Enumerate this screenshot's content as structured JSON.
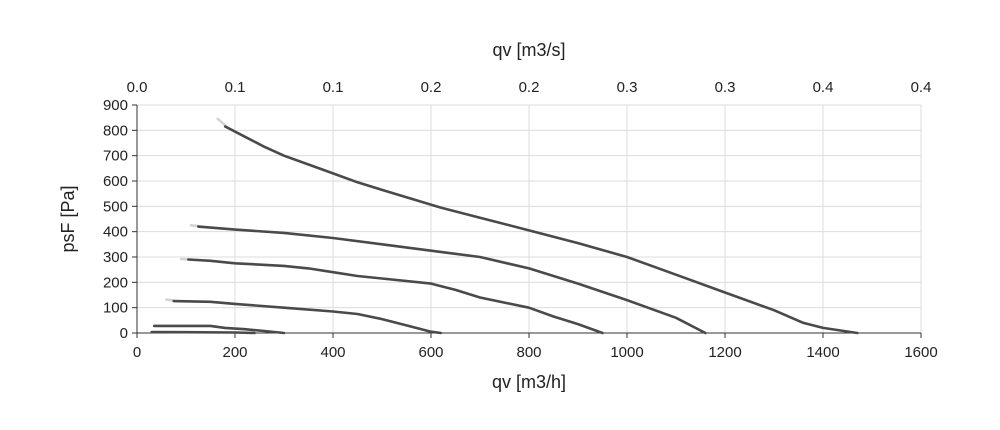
{
  "chart_data": {
    "type": "line",
    "xlabel": "qv [m3/h]",
    "x2label": "qv [m3/s]",
    "ylabel": "psF [Pa]",
    "xlim": [
      0,
      1600
    ],
    "ylim": [
      0,
      900
    ],
    "x_ticks": [
      "0",
      "200",
      "400",
      "600",
      "800",
      "1000",
      "1200",
      "1400",
      "1600"
    ],
    "x2_ticks": [
      "0.0",
      "0.1",
      "0.1",
      "0.2",
      "0.2",
      "0.3",
      "0.3",
      "0.4",
      "0.4"
    ],
    "y_ticks": [
      "0",
      "100",
      "200",
      "300",
      "400",
      "500",
      "600",
      "700",
      "800",
      "900"
    ],
    "grid": true,
    "series": [
      {
        "lead": [
          [
            165,
            845
          ],
          [
            180,
            820
          ]
        ],
        "points": [
          [
            180,
            815
          ],
          [
            220,
            775
          ],
          [
            260,
            735
          ],
          [
            300,
            700
          ],
          [
            350,
            665
          ],
          [
            400,
            630
          ],
          [
            450,
            595
          ],
          [
            500,
            565
          ],
          [
            560,
            530
          ],
          [
            620,
            495
          ],
          [
            700,
            455
          ],
          [
            800,
            405
          ],
          [
            900,
            355
          ],
          [
            1000,
            300
          ],
          [
            1100,
            230
          ],
          [
            1200,
            160
          ],
          [
            1300,
            90
          ],
          [
            1360,
            40
          ],
          [
            1400,
            20
          ],
          [
            1470,
            0
          ]
        ]
      },
      {
        "lead": [
          [
            110,
            425
          ],
          [
            125,
            422
          ]
        ],
        "points": [
          [
            125,
            420
          ],
          [
            200,
            408
          ],
          [
            300,
            395
          ],
          [
            400,
            375
          ],
          [
            500,
            350
          ],
          [
            600,
            325
          ],
          [
            700,
            300
          ],
          [
            800,
            255
          ],
          [
            900,
            195
          ],
          [
            1000,
            130
          ],
          [
            1100,
            60
          ],
          [
            1160,
            0
          ]
        ]
      },
      {
        "lead": [
          [
            90,
            292
          ],
          [
            105,
            290
          ]
        ],
        "points": [
          [
            105,
            290
          ],
          [
            150,
            285
          ],
          [
            200,
            275
          ],
          [
            300,
            265
          ],
          [
            350,
            255
          ],
          [
            400,
            240
          ],
          [
            450,
            225
          ],
          [
            500,
            215
          ],
          [
            600,
            195
          ],
          [
            650,
            170
          ],
          [
            700,
            140
          ],
          [
            800,
            100
          ],
          [
            850,
            65
          ],
          [
            900,
            35
          ],
          [
            950,
            0
          ]
        ]
      },
      {
        "lead": [
          [
            60,
            132
          ],
          [
            75,
            128
          ]
        ],
        "points": [
          [
            75,
            126
          ],
          [
            150,
            123
          ],
          [
            200,
            115
          ],
          [
            300,
            100
          ],
          [
            400,
            85
          ],
          [
            450,
            75
          ],
          [
            500,
            55
          ],
          [
            550,
            30
          ],
          [
            600,
            5
          ],
          [
            620,
            0
          ]
        ]
      },
      {
        "lead": [],
        "points": [
          [
            35,
            28
          ],
          [
            100,
            28
          ],
          [
            150,
            28
          ],
          [
            180,
            20
          ],
          [
            220,
            15
          ],
          [
            260,
            8
          ],
          [
            300,
            0
          ]
        ]
      },
      {
        "lead": [],
        "points": [
          [
            30,
            4
          ],
          [
            100,
            3
          ],
          [
            200,
            2
          ],
          [
            240,
            0
          ]
        ]
      }
    ]
  }
}
